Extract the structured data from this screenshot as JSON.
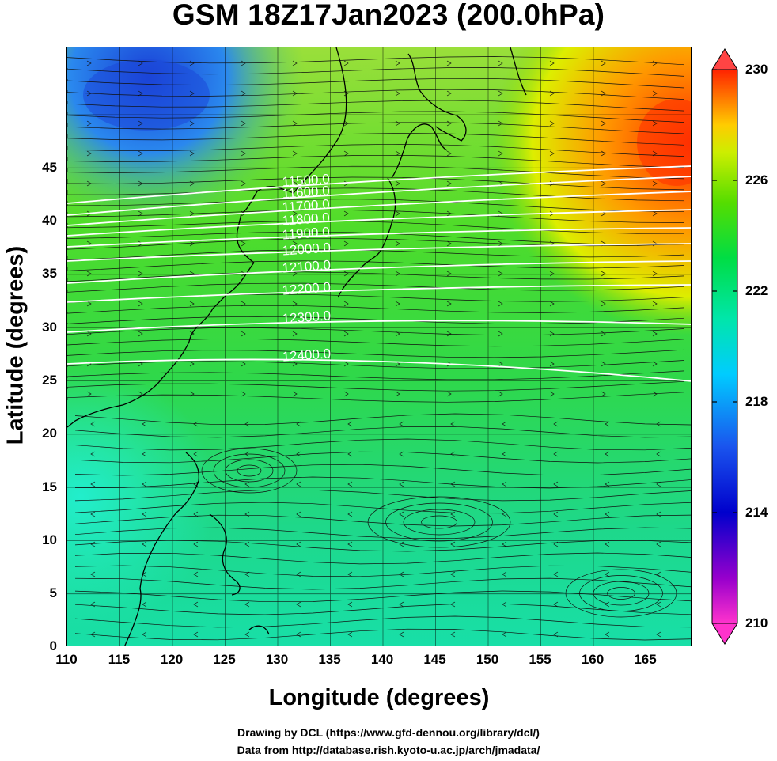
{
  "title": "GSM 18Z17Jan2023 (200.0hPa)",
  "axes": {
    "xlabel": "Longitude (degrees)",
    "ylabel": "Latitude  (degrees)",
    "xticks": [
      "110",
      "115",
      "120",
      "125",
      "130",
      "135",
      "140",
      "145",
      "150",
      "155",
      "160",
      "165"
    ],
    "yticks": [
      "0",
      "5",
      "10",
      "15",
      "20",
      "25",
      "30",
      "35",
      "40",
      "45"
    ]
  },
  "colorbar": {
    "ticks": [
      "230",
      "226",
      "222",
      "218",
      "214",
      "210"
    ],
    "colors": [
      "#ff33cc",
      "#9900cc",
      "#0000cc",
      "#0066ff",
      "#00ccff",
      "#00e6aa",
      "#00dd44",
      "#55dd00",
      "#ccee00",
      "#ffcc00",
      "#ff7700",
      "#ff2200"
    ]
  },
  "contour_labels": [
    "11500.0",
    "11600.0",
    "11700.0",
    "11800.0",
    "11900.0",
    "12000.0",
    "12100.0",
    "12200.0",
    "12300.0",
    "12400.0"
  ],
  "credits": {
    "line1": "Drawing by DCL (https://www.gfd-dennou.org/library/dcl/)",
    "line2": "Data from http://database.rish.kyoto-u.ac.jp/arch/jmadata/"
  }
}
